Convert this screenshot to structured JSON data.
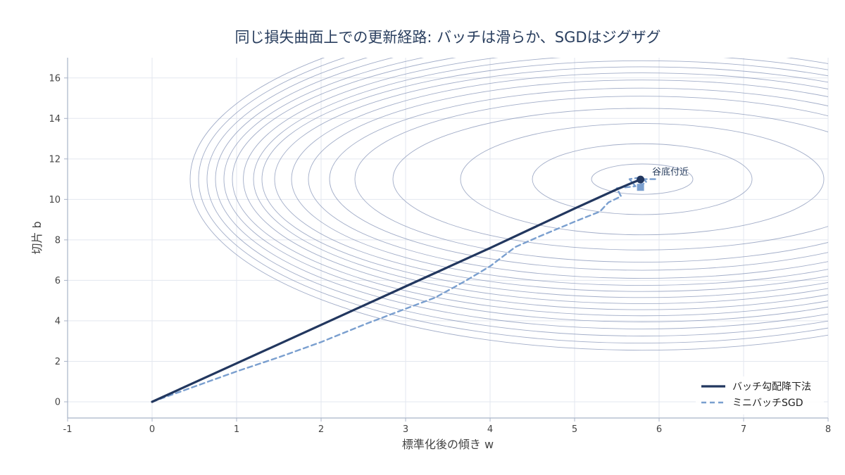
{
  "chart_data": {
    "type": "line",
    "title": "同じ損失曲面上での更新経路: バッチは滑らか、SGDはジグザグ",
    "xlabel": "標準化後の傾き w",
    "ylabel": "切片 b",
    "xlim": [
      -1,
      8
    ],
    "ylim": [
      -0.8,
      17
    ],
    "x_ticks": [
      -1,
      0,
      1,
      2,
      3,
      4,
      5,
      6,
      7,
      8
    ],
    "y_ticks": [
      0,
      2,
      4,
      6,
      8,
      10,
      12,
      14,
      16
    ],
    "grid": true,
    "legend_position": "bottom-right",
    "contour": {
      "center": [
        5.8,
        11.0
      ],
      "level_semi_axes_w": [
        0.6,
        1.3,
        2.15,
        2.95,
        3.4,
        3.7,
        3.95,
        4.15,
        4.35,
        4.5,
        4.6,
        4.72,
        4.85,
        4.95,
        5.05,
        5.15,
        5.25,
        5.35
      ],
      "level_semi_axes_b": [
        0.75,
        1.75,
        2.75,
        3.5,
        4.1,
        4.5,
        4.9,
        5.25,
        5.55,
        5.85,
        6.15,
        6.45,
        6.75,
        7.05,
        7.4,
        7.75,
        8.1,
        8.45
      ],
      "color": "#8391b5"
    },
    "series": [
      {
        "name": "バッチ勾配降下法",
        "style": "solid",
        "color": "#22375f",
        "points": [
          [
            0,
            0
          ],
          [
            1,
            1.9
          ],
          [
            2,
            3.8
          ],
          [
            3,
            5.7
          ],
          [
            4,
            7.6
          ],
          [
            5,
            9.55
          ],
          [
            5.5,
            10.5
          ],
          [
            5.7,
            10.85
          ],
          [
            5.78,
            10.98
          ]
        ]
      },
      {
        "name": "ミニバッチSGD",
        "style": "dashed",
        "color": "#7a9fcf",
        "points": [
          [
            0,
            0
          ],
          [
            0.5,
            0.75
          ],
          [
            1,
            1.5
          ],
          [
            1.5,
            2.2
          ],
          [
            2,
            2.95
          ],
          [
            2.5,
            3.8
          ],
          [
            3,
            4.6
          ],
          [
            3.35,
            5.15
          ],
          [
            3.7,
            5.95
          ],
          [
            4,
            6.7
          ],
          [
            4.3,
            7.65
          ],
          [
            4.6,
            8.2
          ],
          [
            5,
            8.9
          ],
          [
            5.3,
            9.4
          ],
          [
            5.4,
            9.85
          ],
          [
            5.55,
            10.15
          ],
          [
            5.5,
            10.55
          ],
          [
            5.72,
            10.65
          ],
          [
            5.65,
            11.0
          ],
          [
            5.8,
            11.1
          ],
          [
            5.85,
            10.85
          ],
          [
            5.78,
            10.7
          ],
          [
            5.82,
            11.0
          ],
          [
            5.97,
            11.0
          ]
        ]
      }
    ],
    "annotations": [
      {
        "text": "谷底付近",
        "x": 5.8,
        "y": 11.0
      }
    ]
  }
}
